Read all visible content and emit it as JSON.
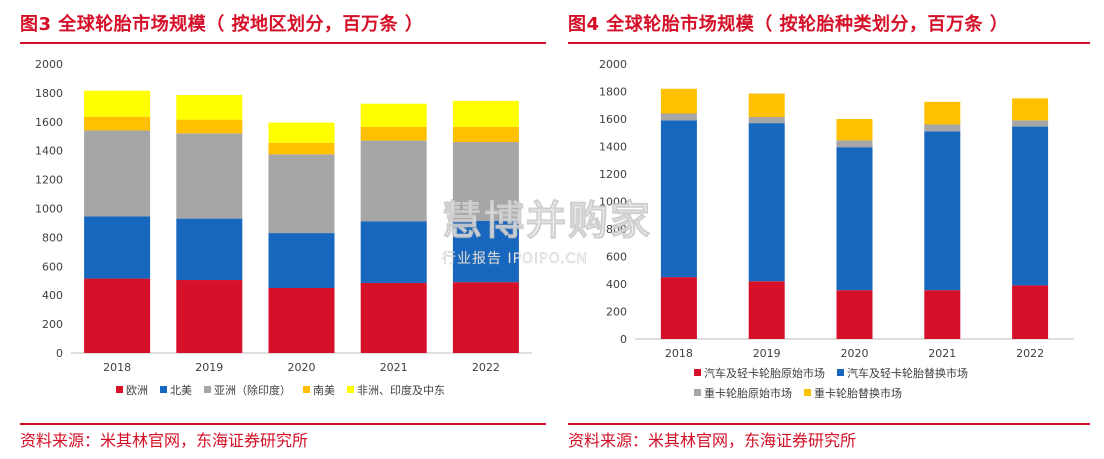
{
  "panels": [
    {
      "title": "图3  全球轮胎市场规模（ 按地区划分，百万条 ）",
      "source": "资料来源：米其林官网，东海证券研究所"
    },
    {
      "title": "图4  全球轮胎市场规模（ 按轮胎种类划分，百万条 ）",
      "source": "资料来源：米其林官网，东海证券研究所"
    }
  ],
  "watermark": {
    "main": "慧博并购家",
    "sub": "行业报告 IPOIPO.CN"
  },
  "chart_data": [
    {
      "type": "bar",
      "stacked": true,
      "title": "图3 全球轮胎市场规模（按地区划分，百万条）",
      "categories": [
        "2018",
        "2019",
        "2020",
        "2021",
        "2022"
      ],
      "ylim": [
        0,
        2000
      ],
      "yticks": [
        "0",
        "200",
        "400",
        "600",
        "800",
        "1000",
        "1200",
        "1400",
        "1600",
        "1800",
        "2000"
      ],
      "grid": false,
      "legend_position": "bottom",
      "series": [
        {
          "name": "欧洲",
          "color": "#d7102a",
          "values": [
            515,
            505,
            450,
            485,
            490
          ]
        },
        {
          "name": "北美",
          "color": "#1767bf",
          "values": [
            430,
            425,
            380,
            425,
            425
          ]
        },
        {
          "name": "亚洲（除印度）",
          "color": "#a6a6a6",
          "values": [
            595,
            590,
            545,
            560,
            545
          ]
        },
        {
          "name": "南美",
          "color": "#ffc000",
          "values": [
            95,
            95,
            80,
            95,
            105
          ]
        },
        {
          "name": "非洲、印度及中东",
          "color": "#ffff00",
          "values": [
            180,
            170,
            140,
            160,
            180
          ]
        }
      ]
    },
    {
      "type": "bar",
      "stacked": true,
      "title": "图4 全球轮胎市场规模（按轮胎种类划分，百万条）",
      "categories": [
        "2018",
        "2019",
        "2020",
        "2021",
        "2022"
      ],
      "ylim": [
        0,
        2000
      ],
      "yticks": [
        "0",
        "200",
        "400",
        "600",
        "800",
        "1000",
        "1200",
        "1400",
        "1600",
        "1800",
        "2000"
      ],
      "grid": false,
      "legend_position": "bottom",
      "series": [
        {
          "name": "汽车及轻卡轮胎原始市场",
          "color": "#d7102a",
          "values": [
            450,
            420,
            355,
            355,
            390
          ]
        },
        {
          "name": "汽车及轻卡轮胎替换市场",
          "color": "#1767bf",
          "values": [
            1140,
            1150,
            1040,
            1155,
            1155
          ]
        },
        {
          "name": "重卡轮胎原始市场",
          "color": "#a6a6a6",
          "values": [
            50,
            45,
            50,
            50,
            45
          ]
        },
        {
          "name": "重卡轮胎替换市场",
          "color": "#ffc000",
          "values": [
            180,
            170,
            155,
            165,
            160
          ]
        }
      ]
    }
  ]
}
